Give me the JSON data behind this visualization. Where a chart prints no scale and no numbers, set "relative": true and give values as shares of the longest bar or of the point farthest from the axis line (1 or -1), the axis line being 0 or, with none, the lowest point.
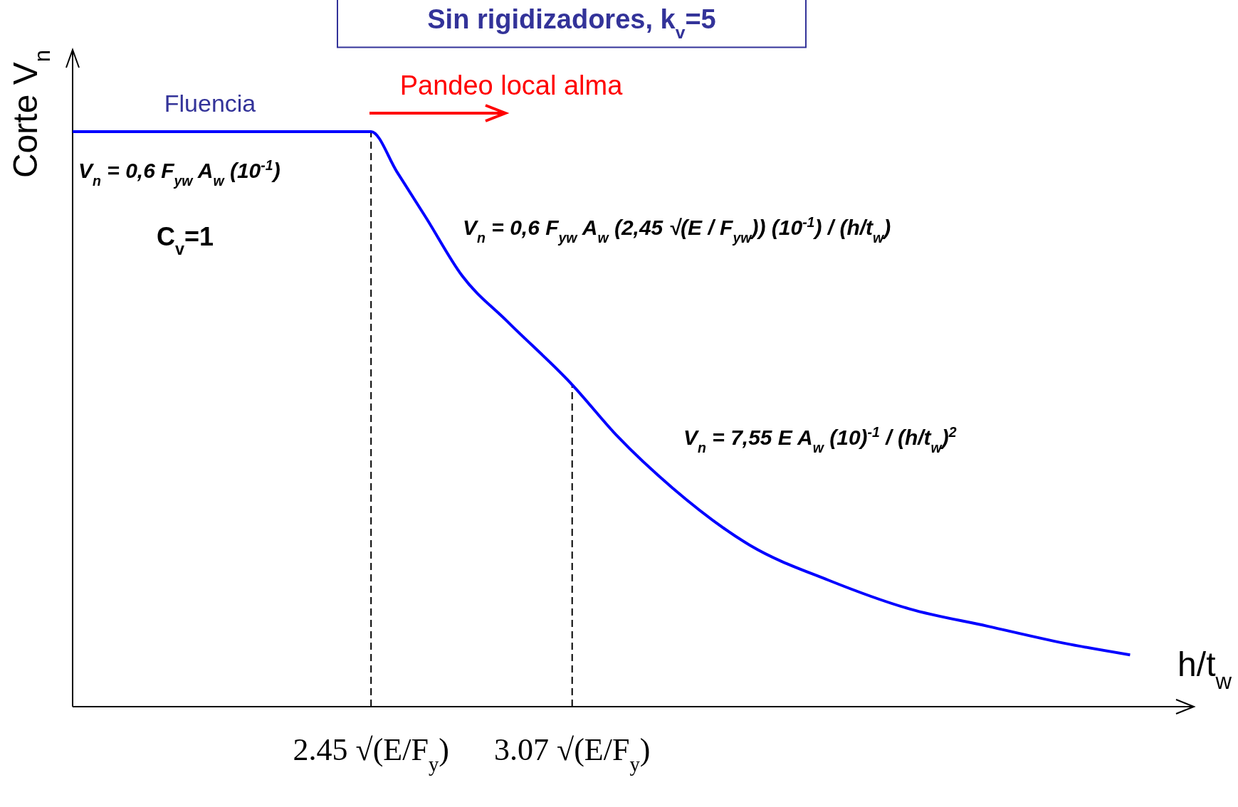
{
  "chart_data": {
    "type": "line",
    "relative": true,
    "title": "Sin rigidizadores, k$_{v}$=5",
    "xlabel": "h/t$_{w}$",
    "ylabel": "Corte V$_{n}$",
    "xlim": [
      1.53,
      4.98
    ],
    "xticks": [
      {
        "value": 2.45,
        "label": "2.45 √(E/F$_{y}$)"
      },
      {
        "value": 3.07,
        "label": "3.07 √(E/F$_{y}$)"
      }
    ],
    "series": [
      {
        "color": "#0000ff",
        "x": [
          1.53,
          2.45,
          2.53,
          2.62,
          2.73,
          2.87,
          3.07,
          3.21,
          3.38,
          3.62,
          3.86,
          4.11,
          4.35,
          4.59,
          4.79
        ],
        "values": [
          1,
          1,
          0.93,
          0.85,
          0.75,
          0.67,
          0.56,
          0.47,
          0.38,
          0.28,
          0.22,
          0.17,
          0.14,
          0.11,
          0.09
        ]
      }
    ],
    "ref_lines": [
      {
        "axis": "x",
        "value": 2.45,
        "line_style": "dashed",
        "color": "#000000"
      },
      {
        "axis": "x",
        "value": 3.07,
        "line_style": "dashed",
        "color": "#000000"
      }
    ],
    "annotations": [
      "Fluencia",
      "Pandeo local alma",
      "V$_{n}$ = 0,6 F$_{yw}$ A$_{w}$ (10$^{-1}$)",
      "C$_{v}$=1",
      "V$_{n}$ = 0,6 F$_{yw}$ A$_{w}$ (2,45 √(E / F$_{yw}$)) (10$^{-1}$) / (h/t$_{w}$)",
      "V$_{n}$ = 7,55 E A$_{w}$ (10)$^{-1}$ / (h/t$_{w}$)$^{2}$"
    ],
    "marker": "none",
    "line_style": "solid"
  }
}
